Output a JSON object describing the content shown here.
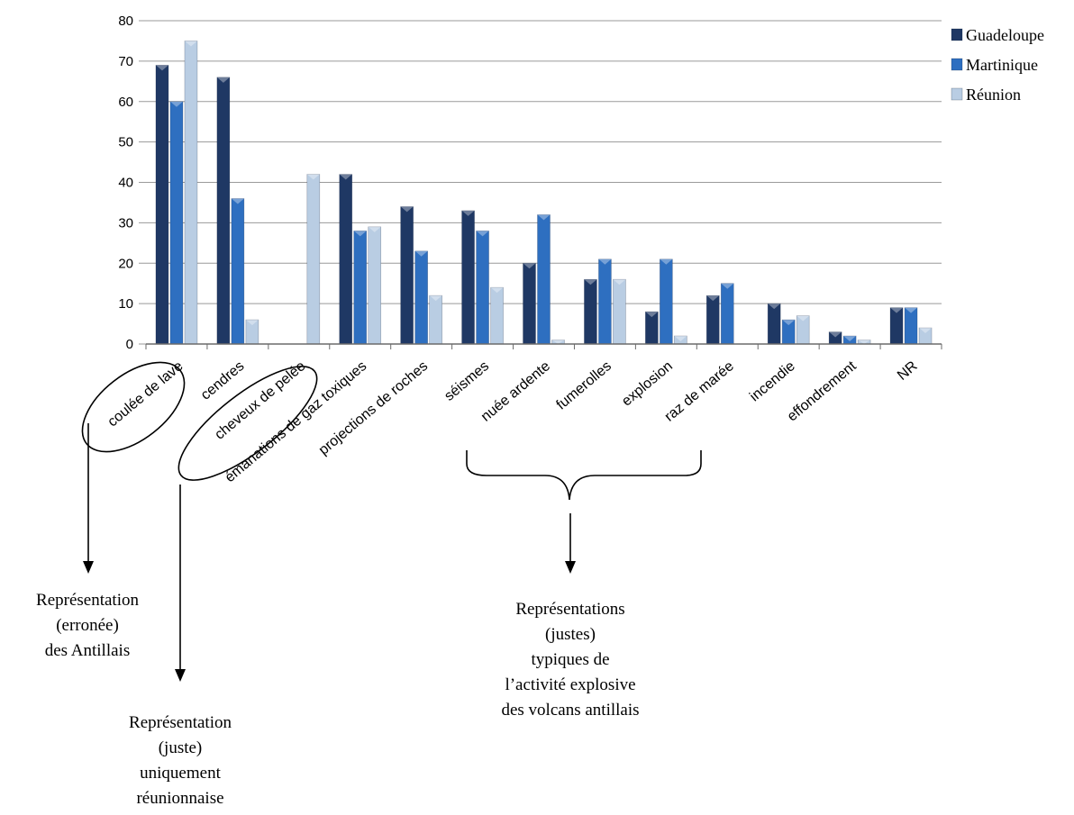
{
  "chart_data": {
    "type": "bar",
    "categories": [
      "coulée de lave",
      "cendres",
      "cheveux de pelée",
      "émanations de gaz toxiques",
      "projections de roches",
      "séismes",
      "nuée ardente",
      "fumerolles",
      "explosion",
      "raz de marée",
      "incendie",
      "effondrement",
      "NR"
    ],
    "series": [
      {
        "name": "Guadeloupe",
        "color": "#1f3864",
        "values": [
          69,
          66,
          0,
          42,
          34,
          33,
          20,
          16,
          8,
          12,
          10,
          3,
          9
        ]
      },
      {
        "name": "Martinique",
        "color": "#2e6fc0",
        "values": [
          60,
          36,
          0,
          28,
          23,
          28,
          32,
          21,
          21,
          15,
          6,
          2,
          9
        ]
      },
      {
        "name": "Réunion",
        "color": "#b9cde3",
        "values": [
          75,
          6,
          42,
          29,
          12,
          14,
          1,
          16,
          2,
          0,
          7,
          1,
          4
        ]
      }
    ],
    "ylim": [
      0,
      80
    ],
    "yticks": [
      0,
      10,
      20,
      30,
      40,
      50,
      60,
      70,
      80
    ],
    "grid": true,
    "legend_position": "right"
  },
  "annotations": [
    {
      "id": "lave",
      "lines": [
        "Représentation",
        "(erronée)",
        "des Antillais"
      ]
    },
    {
      "id": "pelee",
      "lines": [
        "Représentation",
        "(juste)",
        "uniquement",
        "réunionnaise"
      ]
    },
    {
      "id": "explosive",
      "lines": [
        "Représentations",
        "(justes)",
        "typiques de",
        "l’activité explosive",
        "des volcans antillais"
      ]
    }
  ]
}
